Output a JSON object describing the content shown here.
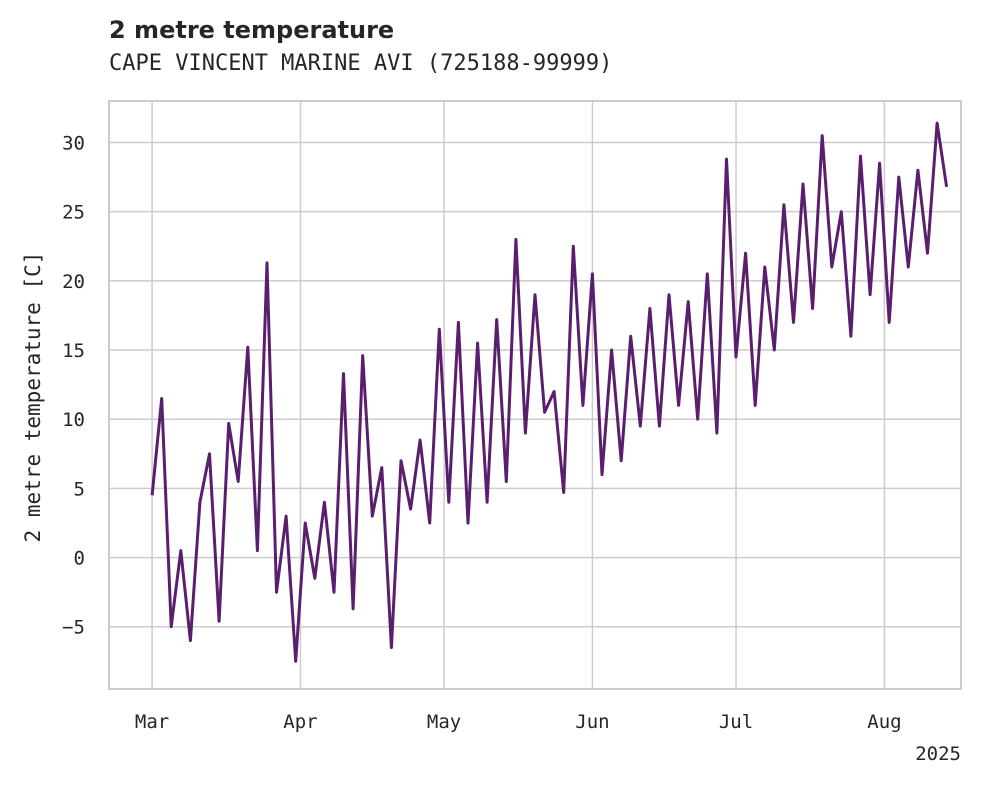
{
  "header": {
    "title": "2 metre temperature",
    "subtitle": "CAPE VINCENT MARINE AVI (725188-99999)"
  },
  "chart_data": {
    "type": "line",
    "title": "2 metre temperature",
    "subtitle": "CAPE VINCENT MARINE AVI (725188-99999)",
    "xlabel": "",
    "ylabel": "2 metre temperature [C]",
    "x_ticks": [
      "Mar",
      "Apr",
      "May",
      "Jun",
      "Jul",
      "Aug"
    ],
    "x_offset_label": "2025",
    "y_ticks": [
      -5,
      0,
      5,
      10,
      15,
      20,
      25,
      30
    ],
    "ylim": [
      -9.5,
      33
    ],
    "xlim": [
      "2025-02-20",
      "2025-08-17"
    ],
    "grid": true,
    "color": "#5a1e6e",
    "series": [
      {
        "x": [
          "2025-03-01",
          "2025-03-03",
          "2025-03-05",
          "2025-03-07",
          "2025-03-09",
          "2025-03-11",
          "2025-03-13",
          "2025-03-15",
          "2025-03-17",
          "2025-03-19",
          "2025-03-21",
          "2025-03-23",
          "2025-03-25",
          "2025-03-27",
          "2025-03-29",
          "2025-03-31",
          "2025-04-02",
          "2025-04-04",
          "2025-04-06",
          "2025-04-08",
          "2025-04-10",
          "2025-04-12",
          "2025-04-14",
          "2025-04-16",
          "2025-04-18",
          "2025-04-20",
          "2025-04-22",
          "2025-04-24",
          "2025-04-26",
          "2025-04-28",
          "2025-04-30",
          "2025-05-02",
          "2025-05-04",
          "2025-05-06",
          "2025-05-08",
          "2025-05-10",
          "2025-05-12",
          "2025-05-14",
          "2025-05-16",
          "2025-05-18",
          "2025-05-20",
          "2025-05-22",
          "2025-05-24",
          "2025-05-26",
          "2025-05-28",
          "2025-05-30",
          "2025-06-01",
          "2025-06-03",
          "2025-06-05",
          "2025-06-07",
          "2025-06-09",
          "2025-06-11",
          "2025-06-13",
          "2025-06-15",
          "2025-06-17",
          "2025-06-19",
          "2025-06-21",
          "2025-06-23",
          "2025-06-25",
          "2025-06-27",
          "2025-06-29",
          "2025-07-01",
          "2025-07-03",
          "2025-07-05",
          "2025-07-07",
          "2025-07-09",
          "2025-07-11",
          "2025-07-13",
          "2025-07-15",
          "2025-07-17",
          "2025-07-19",
          "2025-07-21",
          "2025-07-23",
          "2025-07-25",
          "2025-07-27",
          "2025-07-29",
          "2025-07-31",
          "2025-08-02",
          "2025-08-04",
          "2025-08-06",
          "2025-08-08",
          "2025-08-10",
          "2025-08-12",
          "2025-08-14"
        ],
        "values": [
          4.5,
          11.5,
          -5,
          0.5,
          -6,
          4,
          7.5,
          -4.6,
          9.7,
          5.5,
          15.2,
          0.5,
          21.3,
          -2.5,
          3,
          -7.5,
          2.5,
          -1.5,
          4,
          -2.5,
          13.3,
          -3.7,
          14.6,
          3,
          6.5,
          -6.5,
          7,
          3.5,
          8.5,
          2.5,
          16.5,
          4,
          17,
          2.5,
          15.5,
          4,
          17.2,
          5.5,
          23,
          9,
          19,
          10.5,
          12,
          4.7,
          22.5,
          11,
          20.5,
          6,
          15,
          7,
          16,
          9.5,
          18,
          9.5,
          19,
          11,
          18.5,
          10,
          20.5,
          9,
          28.8,
          14.5,
          22,
          11,
          21,
          15,
          25.5,
          17,
          27,
          18,
          30.5,
          21,
          25,
          16,
          29,
          19,
          28.5,
          17,
          27.5,
          21,
          28,
          22,
          31.4,
          26.8
        ]
      }
    ]
  }
}
